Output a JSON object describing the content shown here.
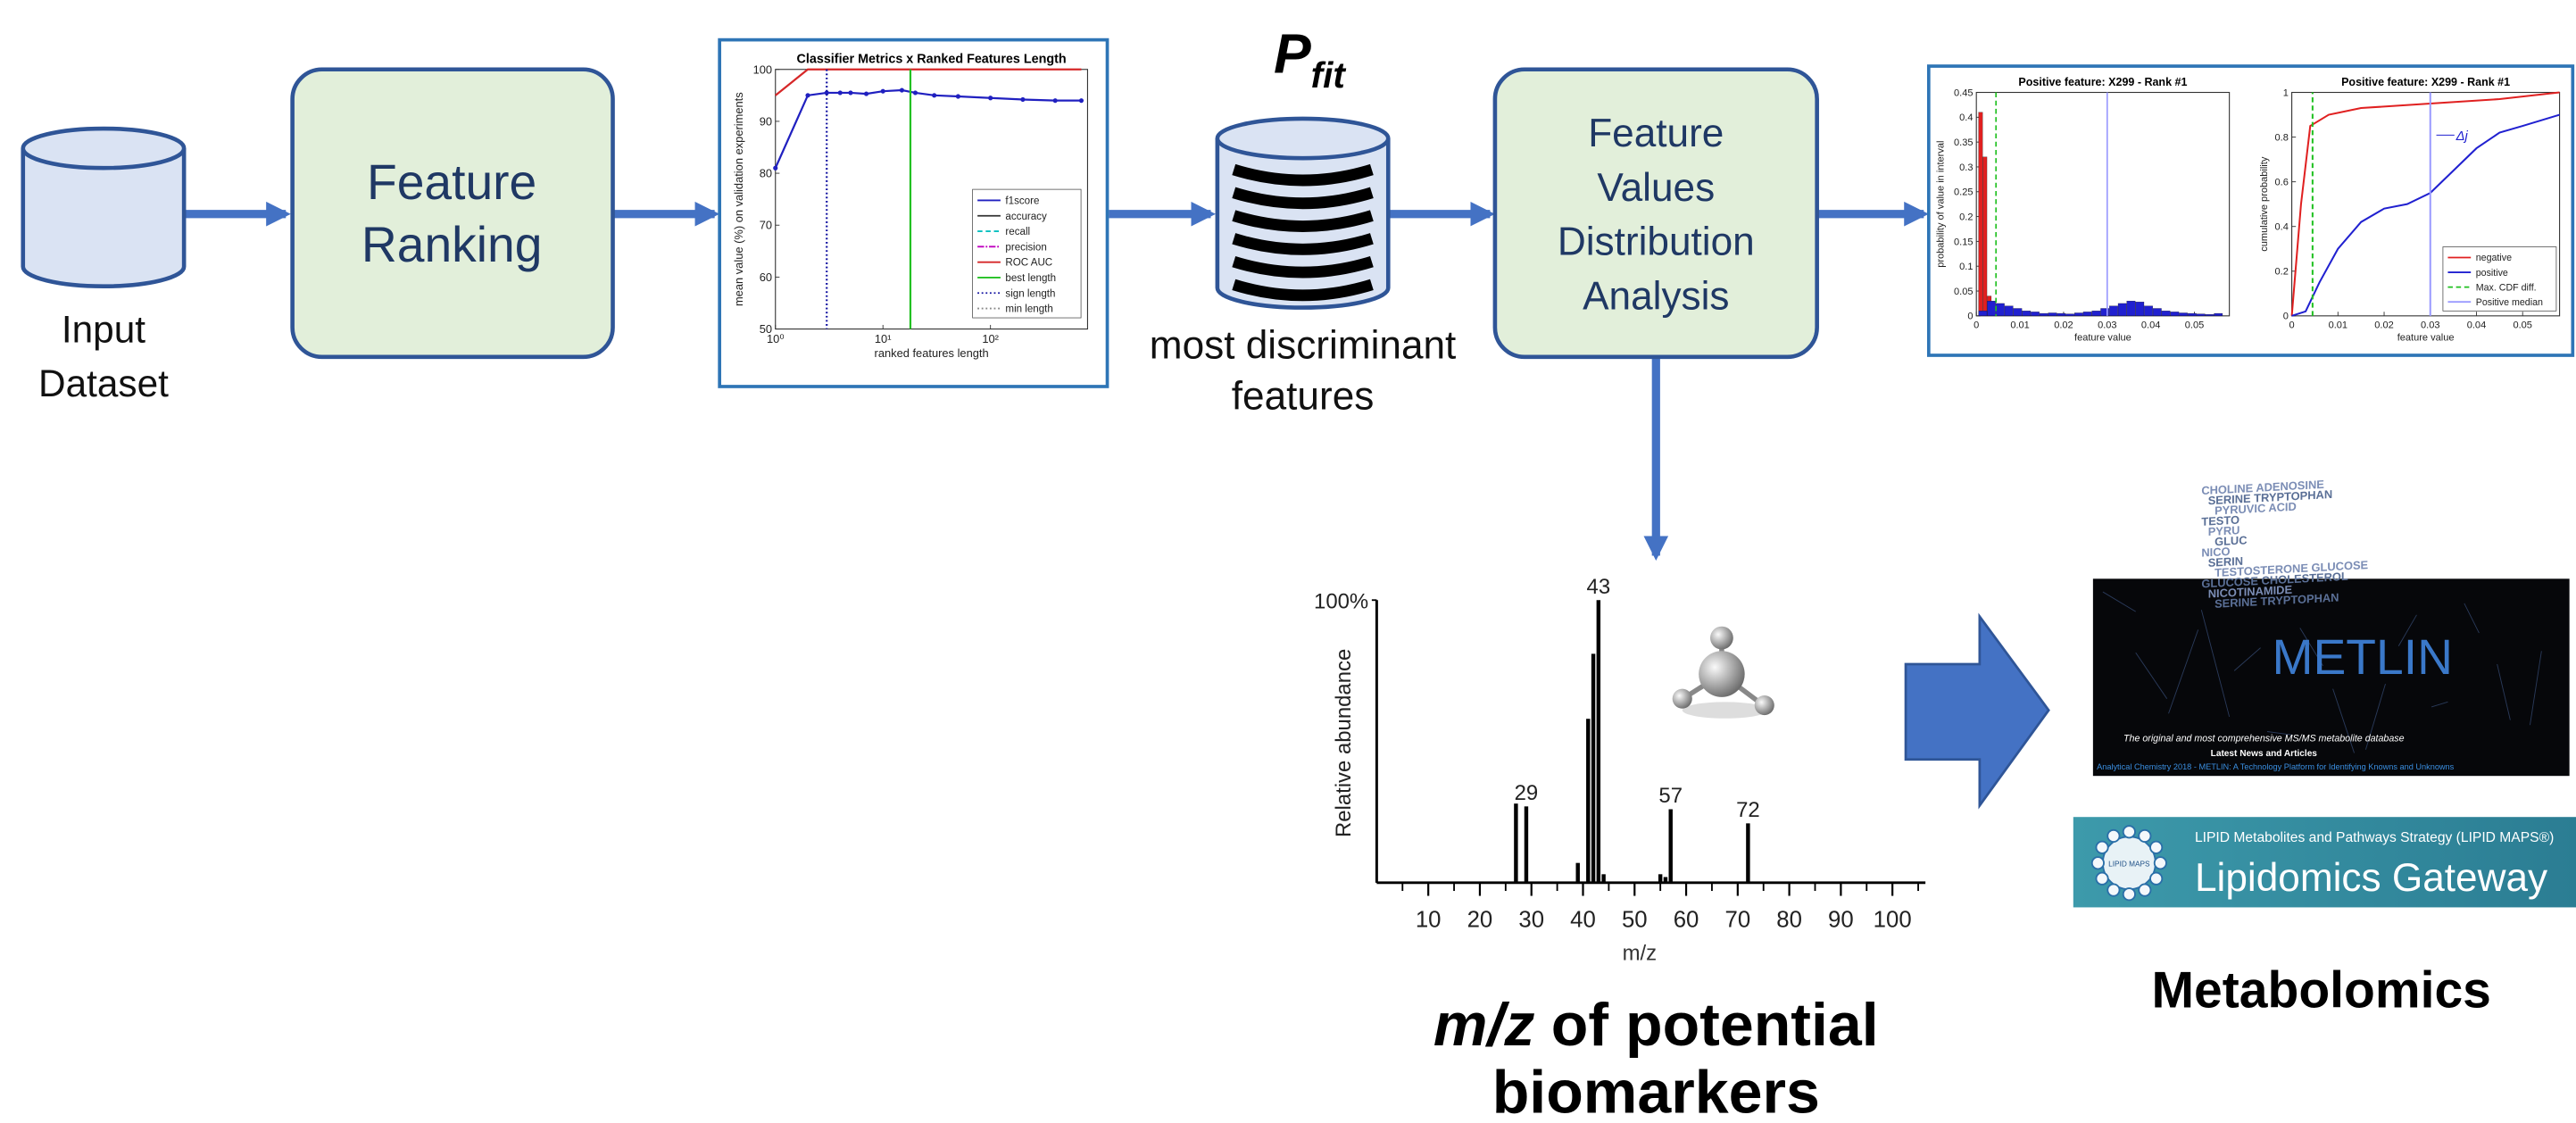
{
  "input": {
    "label": [
      "Input",
      "Dataset"
    ]
  },
  "ranking": {
    "label": [
      "Feature",
      "Ranking"
    ]
  },
  "classifier_plot": {
    "type": "line",
    "title": "Classifier Metrics x Ranked Features Length",
    "ylabel": "mean value (%) on validation experiments",
    "xlabel": "ranked features length",
    "log_x": true,
    "xlim": [
      1,
      800
    ],
    "ylim": [
      50,
      100
    ],
    "xticks": [
      {
        "value": 1,
        "label": "10⁰"
      },
      {
        "value": 10,
        "label": "10¹"
      },
      {
        "value": 100,
        "label": "10²"
      }
    ],
    "yticks": [
      50,
      60,
      70,
      80,
      90,
      100
    ],
    "series": [
      {
        "name": "f1score",
        "color": "#2020c0",
        "x": [
          1,
          2,
          3,
          4,
          5,
          7,
          10,
          15,
          20,
          30,
          50,
          100,
          200,
          400,
          700
        ],
        "values": [
          81,
          95,
          95.5,
          95.5,
          95.5,
          95.3,
          95.8,
          96,
          95.5,
          95,
          94.8,
          94.5,
          94.2,
          94,
          94
        ]
      },
      {
        "name": "accuracy",
        "color": "#333333"
      },
      {
        "name": "recall",
        "color": "#00bfbf",
        "dash": "3 2"
      },
      {
        "name": "precision",
        "color": "#bf00bf",
        "dash": "4 1 1 1"
      },
      {
        "name": "ROC AUC",
        "color": "#d62728",
        "x": [
          1,
          2,
          700
        ],
        "values": [
          95,
          100,
          100
        ]
      },
      {
        "name": "best length",
        "color": "#22c022",
        "x_at": 18
      },
      {
        "name": "sign length",
        "color": "#1010a0",
        "dash": "1 1.5",
        "x_at": 3
      },
      {
        "name": "min length",
        "color": "#888888",
        "dash": "1 1.5"
      }
    ]
  },
  "p_fit": {
    "symbol": "P",
    "subscript": "fit"
  },
  "discriminant": {
    "label": [
      "most discriminant",
      "features"
    ]
  },
  "distribution_analysis": {
    "label": [
      "Feature",
      "Values",
      "Distribution",
      "Analysis"
    ]
  },
  "distribution_plots": [
    {
      "type": "histogram",
      "title": "Positive feature: X299 - Rank #1",
      "ylabel": "probability of value in interval",
      "xlabel": "feature value",
      "xlim": [
        0,
        0.058
      ],
      "ylim": [
        0,
        0.45
      ],
      "xticks": [
        0,
        0.01,
        0.02,
        0.03,
        0.04,
        0.05
      ],
      "yticks": [
        0,
        0.05,
        0.1,
        0.15,
        0.2,
        0.25,
        0.3,
        0.35,
        0.4,
        0.45
      ],
      "series": [
        {
          "color": "#e02020",
          "bins": [
            0.0005,
            0.0015,
            0.0025,
            0.0035
          ],
          "counts": [
            0.41,
            0.32,
            0.04
          ]
        },
        {
          "color": "#2020d0",
          "bins": [
            0.0005,
            0.0025,
            0.0045,
            0.0065,
            0.0085,
            0.0105,
            0.0125,
            0.0145,
            0.0165,
            0.0185,
            0.0205,
            0.0225,
            0.0245,
            0.0265,
            0.0285,
            0.0305,
            0.0325,
            0.0345,
            0.0365,
            0.0385,
            0.0405,
            0.0425,
            0.0445,
            0.0465,
            0.0485,
            0.0505,
            0.0525,
            0.0545,
            0.0565
          ],
          "counts": [
            0.01,
            0.03,
            0.025,
            0.02,
            0.015,
            0.01,
            0.008,
            0.005,
            0.006,
            0.005,
            0.004,
            0.006,
            0.008,
            0.01,
            0.015,
            0.02,
            0.025,
            0.03,
            0.028,
            0.02,
            0.015,
            0.01,
            0.008,
            0.006,
            0.005,
            0.004,
            0.003,
            0.005
          ]
        }
      ],
      "vlines": [
        {
          "x": 0.0045,
          "color": "#20c020",
          "dash": "3 2"
        },
        {
          "x": 0.03,
          "color": "#9a9aff"
        }
      ]
    },
    {
      "type": "line",
      "title": "Positive feature: X299 - Rank #1",
      "ylabel": "cumulative probability",
      "xlabel": "feature value",
      "xlim": [
        0,
        0.058
      ],
      "ylim": [
        0,
        1
      ],
      "xticks": [
        0,
        0.01,
        0.02,
        0.03,
        0.04,
        0.05
      ],
      "yticks": [
        0,
        0.2,
        0.4,
        0.6,
        0.8,
        1
      ],
      "series": [
        {
          "name": "negative",
          "color": "#e02020",
          "x": [
            0,
            0.002,
            0.004,
            0.008,
            0.015,
            0.03,
            0.045,
            0.058
          ],
          "values": [
            0,
            0.5,
            0.85,
            0.9,
            0.93,
            0.95,
            0.97,
            1
          ]
        },
        {
          "name": "positive",
          "color": "#2020d0",
          "x": [
            0,
            0.003,
            0.006,
            0.01,
            0.015,
            0.02,
            0.025,
            0.03,
            0.035,
            0.04,
            0.045,
            0.05,
            0.058
          ],
          "values": [
            0,
            0.02,
            0.15,
            0.3,
            0.42,
            0.48,
            0.5,
            0.55,
            0.65,
            0.75,
            0.82,
            0.85,
            0.9
          ]
        },
        {
          "name": "Max. CDF diff.",
          "color": "#20c020",
          "dash": "3 2",
          "x": [
            0.0045,
            0.0045
          ],
          "values": [
            0,
            1
          ]
        },
        {
          "name": "Positive median",
          "color": "#9a9aff",
          "x": [
            0.03,
            0.03
          ],
          "values": [
            0,
            1
          ]
        }
      ],
      "annotation": "Δj"
    }
  ],
  "spectrum": {
    "type": "bar",
    "ylabel": "Relative abundance",
    "xlabel": "m/z",
    "xlim": [
      0,
      106.4
    ],
    "ylim": [
      0,
      100
    ],
    "yticks": [
      {
        "value": 100,
        "label": "100%"
      }
    ],
    "xticks": [
      10,
      20,
      30,
      40,
      50,
      60,
      70,
      80,
      90,
      100
    ],
    "minor_xticks": [
      5,
      15,
      25,
      35,
      45,
      55,
      65,
      75,
      85,
      95,
      105
    ],
    "x": [
      27,
      29,
      39,
      41,
      42,
      43,
      44,
      55,
      56,
      57,
      72
    ],
    "values": [
      28,
      27,
      7,
      58,
      81,
      100,
      3,
      3,
      2,
      26,
      21
    ],
    "labeled_peaks": [
      43,
      29,
      57,
      72
    ]
  },
  "caption": {
    "italic": "m/z",
    "bold": "of potential",
    "line2": "biomarkers"
  },
  "metlin": {
    "logo": "METLIN",
    "words": [
      "CHOLINE ADENOSINE",
      "SERINE TRYPTOPHAN",
      "PYRUVIC ACID",
      "TESTO",
      "PYRU",
      "GLUC",
      "NICO",
      "SERIN",
      "TESTOSTERONE GLUCOSE",
      "GLUCOSE CHOLESTEROL",
      "NICOTINAMIDE",
      "SERINE TRYPTOPHAN"
    ],
    "tagline": "The original and most comprehensive MS/MS metabolite database",
    "news": "Latest News and Articles",
    "headline": "Analytical Chemistry 2018 - METLIN: A Technology Platform for Identifying Knowns and Unknowns"
  },
  "lipid_maps": {
    "logo": "LIPID MAPS",
    "subtitle": "LIPID Metabolites and Pathways Strategy (LIPID MAPS®)",
    "title": "Lipidomics Gateway"
  },
  "metabolomics": "Metabolomics"
}
